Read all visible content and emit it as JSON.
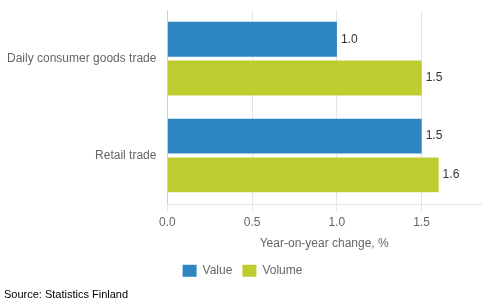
{
  "chart_data": {
    "type": "bar",
    "orientation": "horizontal",
    "categories": [
      "Daily consumer goods trade",
      "Retail trade"
    ],
    "series": [
      {
        "name": "Value",
        "color": "#2E86C1",
        "values": [
          1.0,
          1.5
        ],
        "value_labels": [
          "1.0",
          "1.5"
        ]
      },
      {
        "name": "Volume",
        "color": "#BFCC30",
        "values": [
          1.5,
          1.6
        ],
        "value_labels": [
          "1.5",
          "1.6"
        ]
      }
    ],
    "x_label": "Year-on-year change, %",
    "xlim": [
      0,
      1.85
    ],
    "xticks": [
      {
        "value": 0.0,
        "label": "0.0"
      },
      {
        "value": 0.5,
        "label": "0.5"
      },
      {
        "value": 1.0,
        "label": "1.0"
      },
      {
        "value": 1.5,
        "label": "1.5"
      }
    ],
    "grid": "x",
    "legend": "bottom",
    "data_labels": true,
    "annotations": [
      "Source: Statistics Finland"
    ]
  }
}
